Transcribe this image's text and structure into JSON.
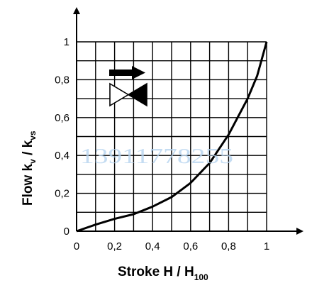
{
  "chart_data": {
    "type": "line",
    "xlabel": "Stroke H / H",
    "xlabel_sub": "100",
    "ylabel": "Flow k",
    "ylabel_sub1": "v",
    "ylabel_sep": " / k",
    "ylabel_sub2": "vs",
    "xlim": [
      0,
      1
    ],
    "ylim": [
      0,
      1
    ],
    "grid": true,
    "grid_step": 0.1,
    "x_ticks": [
      0,
      0.2,
      0.4,
      0.6,
      0.8,
      1
    ],
    "x_tick_labels": [
      "0",
      "0,2",
      "0,4",
      "0,6",
      "0,8",
      "1"
    ],
    "y_ticks": [
      0,
      0.2,
      0.4,
      0.6,
      0.8,
      1
    ],
    "y_tick_labels": [
      "0",
      "0,2",
      "0,4",
      "0,6",
      "0,8",
      "1"
    ],
    "series": [
      {
        "x": [
          0,
          0.1,
          0.2,
          0.3,
          0.4,
          0.5,
          0.6,
          0.7,
          0.8,
          0.9,
          0.95,
          1
        ],
        "y": [
          0,
          0.035,
          0.065,
          0.09,
          0.13,
          0.18,
          0.255,
          0.36,
          0.51,
          0.7,
          0.82,
          1
        ]
      }
    ],
    "colors": {
      "line": "#000000",
      "grid": "#000000",
      "watermark": "#b5d3ef"
    }
  },
  "symbol": {
    "name": "valve-flow-symbol-icon"
  },
  "watermark": {
    "text": "13911778255"
  }
}
